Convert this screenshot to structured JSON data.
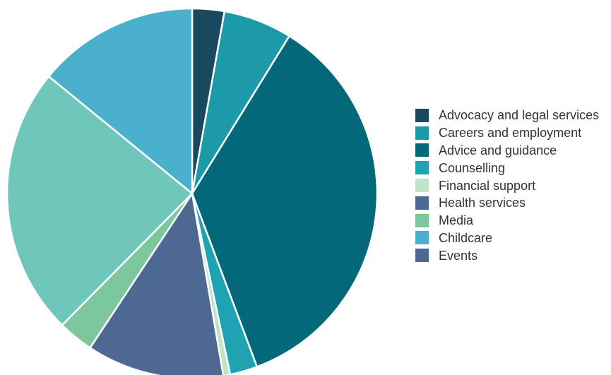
{
  "chart_data": {
    "type": "pie",
    "title": "",
    "start_angle_deg": 0,
    "direction": "clockwise",
    "legend_position": "right",
    "slices": [
      {
        "label": "Advocacy and legal services",
        "value": 2.8,
        "color": "#17495f"
      },
      {
        "label": "Careers and employment",
        "value": 6.0,
        "color": "#1d9aa9"
      },
      {
        "label": "Advice and guidance",
        "value": 35.5,
        "color": "#03687a"
      },
      {
        "label": "Counselling",
        "value": 2.4,
        "color": "#1ea3b3"
      },
      {
        "label": "Financial support",
        "value": 0.6,
        "color": "#bfe4c9"
      },
      {
        "label": "Health services",
        "value": 12.0,
        "color": "#4d6993"
      },
      {
        "label": "Media",
        "value": 3.1,
        "color": "#7cc89c"
      },
      {
        "label": "Childcare",
        "value": 0.0,
        "color": "#4bb0cc"
      },
      {
        "label": "Events",
        "value": 0.0,
        "color": "#4d6993"
      },
      {
        "label": "",
        "value": 23.5,
        "color": "#6fc6bb"
      },
      {
        "label": "",
        "value": 14.1,
        "color": "#4bb0cc"
      }
    ],
    "legend": [
      {
        "label": "Advocacy and legal services",
        "color": "#17495f"
      },
      {
        "label": "Careers and employment",
        "color": "#1d9aa9"
      },
      {
        "label": "Advice and guidance",
        "color": "#03687a"
      },
      {
        "label": "Counselling",
        "color": "#1ea3b3"
      },
      {
        "label": "Financial support",
        "color": "#bfe4c9"
      },
      {
        "label": "Health services",
        "color": "#4d6993"
      },
      {
        "label": "Media",
        "color": "#7cc89c"
      },
      {
        "label": "Childcare",
        "color": "#4bb0cc"
      },
      {
        "label": "Events",
        "color": "#4d6993"
      }
    ]
  }
}
